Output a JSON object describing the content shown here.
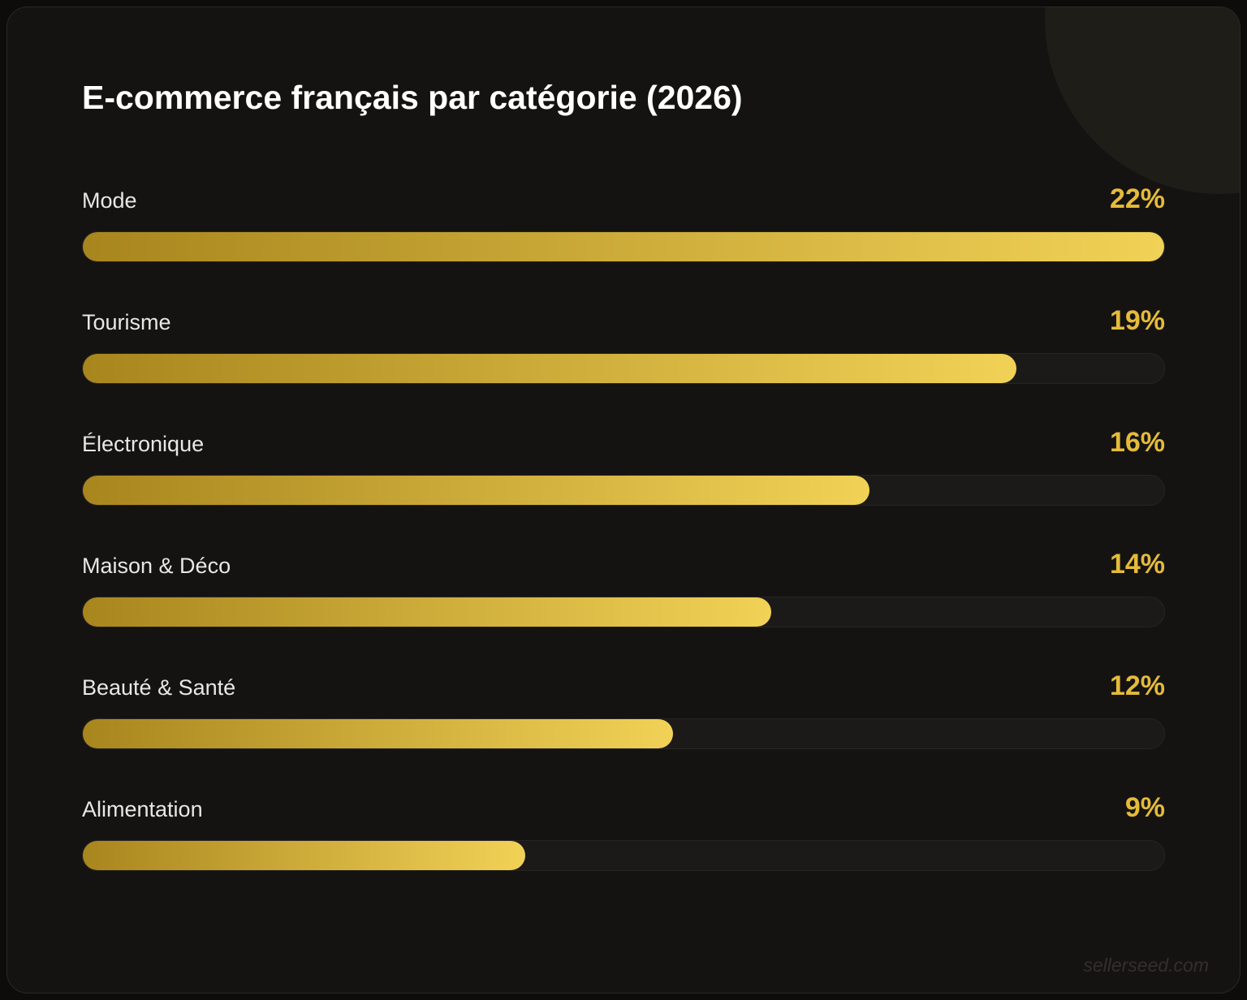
{
  "title": "E-commerce français par catégorie (2026)",
  "watermark": "sellerseed.com",
  "colors": {
    "page_bg": "#0d0c0b",
    "card_bg": "#151312",
    "card_border": "#2b2824",
    "blob_color": "#1f1d18",
    "title_color": "#ffffff",
    "label_color": "#e9e7e4",
    "value_color": "#e4bb3a",
    "track_bg": "#1b1a18",
    "track_border": "#272522",
    "bar_gradient_start": "#a8861e",
    "bar_gradient_end": "#f1d256",
    "watermark_color": "#332f29"
  },
  "chart_data": {
    "type": "bar",
    "orientation": "horizontal",
    "title": "E-commerce français par catégorie (2026)",
    "categories": [
      "Mode",
      "Tourisme",
      "Électronique",
      "Maison & Déco",
      "Beauté & Santé",
      "Alimentation"
    ],
    "values": [
      22,
      19,
      16,
      14,
      12,
      9
    ],
    "value_labels": [
      "22%",
      "19%",
      "16%",
      "14%",
      "12%",
      "9%"
    ],
    "unit": "%",
    "max_value": 22,
    "bars_scaled_to_max": true,
    "grid": false,
    "legend": false
  }
}
